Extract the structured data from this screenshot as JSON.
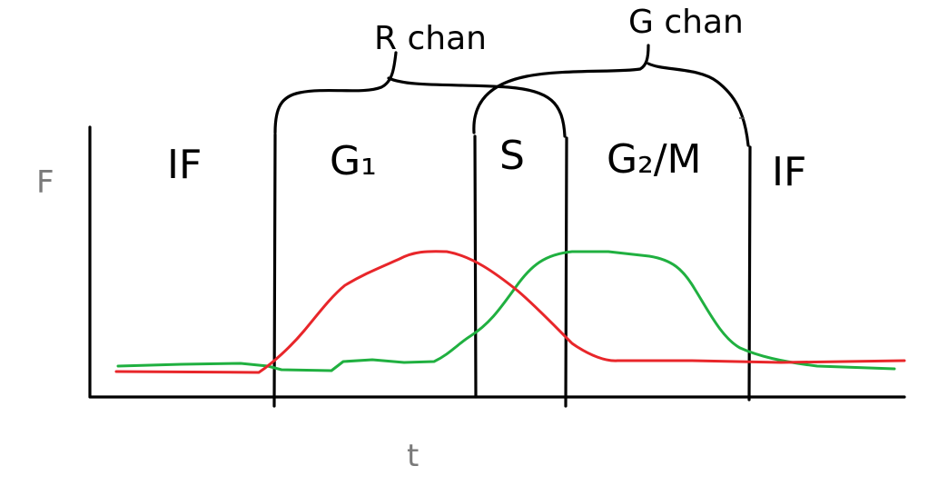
{
  "diagram": {
    "y_axis_label": "F",
    "x_axis_label": "t",
    "phases": [
      {
        "id": "if-left",
        "label": "IF"
      },
      {
        "id": "g1",
        "label": "G₁"
      },
      {
        "id": "s",
        "label": "S"
      },
      {
        "id": "g2m",
        "label": "G₂/M"
      },
      {
        "id": "if-right",
        "label": "IF"
      }
    ],
    "brackets": [
      {
        "id": "r-chan",
        "label": "R chan",
        "spans": [
          "G₁",
          "S"
        ]
      },
      {
        "id": "g-chan",
        "label": "G chan",
        "spans": [
          "S",
          "G₂/M"
        ]
      }
    ],
    "curves": [
      {
        "id": "red-curve",
        "channel": "R",
        "color": "#e8262a"
      },
      {
        "id": "green-curve",
        "channel": "G",
        "color": "#20b040"
      }
    ],
    "colors": {
      "ink": "#000000",
      "background": "#ffffff"
    }
  }
}
